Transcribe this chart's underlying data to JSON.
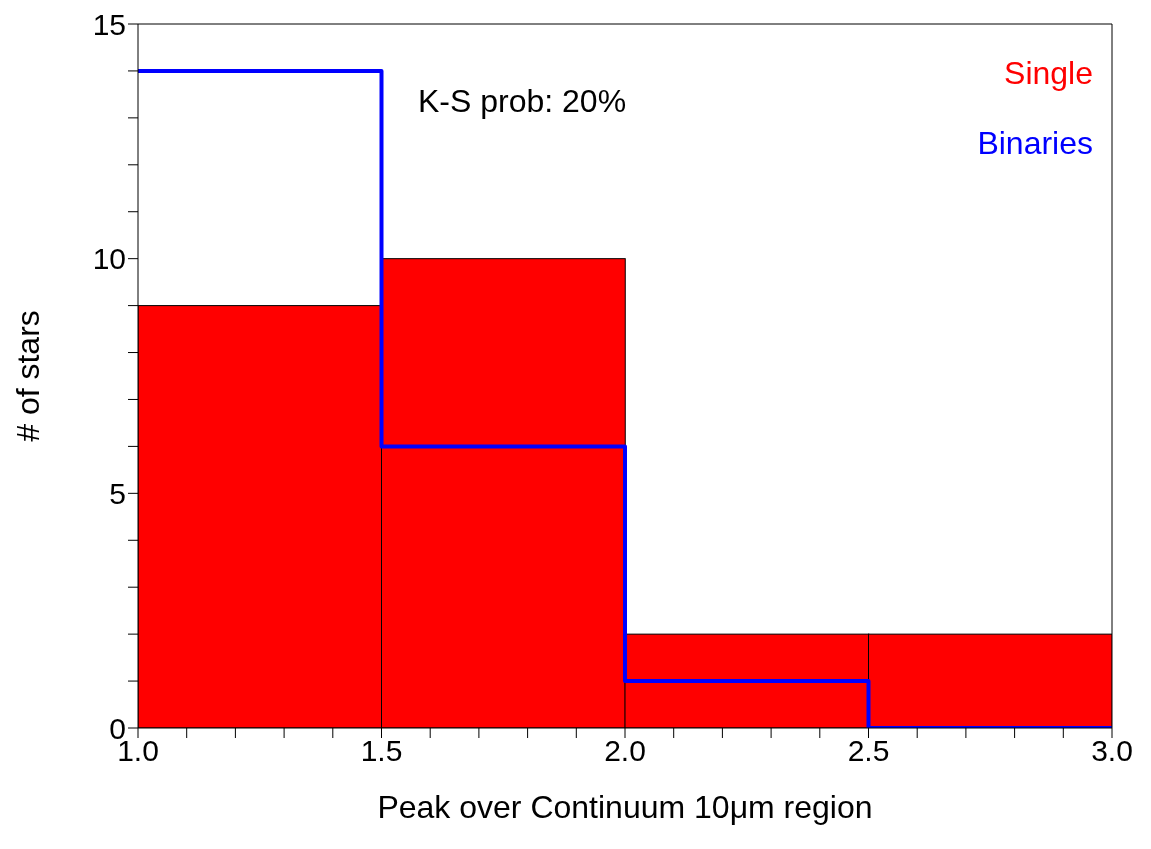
{
  "chart_data": {
    "type": "histogram",
    "xlabel": "Peak over Continuum 10μm region",
    "ylabel": "# of stars",
    "bins": [
      1,
      1.5,
      2,
      2.5,
      3
    ],
    "series": [
      {
        "name": "Single",
        "color": "#ff0000",
        "values": [
          9,
          10,
          2,
          2
        ]
      },
      {
        "name": "Binaries",
        "color": "#0000ff",
        "type": "step",
        "x": [
          1,
          1.5,
          2,
          2.5,
          3
        ],
        "values": [
          14,
          6,
          1,
          0,
          0
        ]
      }
    ],
    "xlim": [
      1,
      3
    ],
    "ylim": [
      0,
      15
    ],
    "xticks": [
      {
        "value": 1,
        "label": "1.0"
      },
      {
        "value": 1.1,
        "label": null
      },
      {
        "value": 1.2,
        "label": null
      },
      {
        "value": 1.3,
        "label": null
      },
      {
        "value": 1.4,
        "label": null
      },
      {
        "value": 1.5,
        "label": "1.5"
      },
      {
        "value": 1.6,
        "label": null
      },
      {
        "value": 1.7,
        "label": null
      },
      {
        "value": 1.8,
        "label": null
      },
      {
        "value": 1.9,
        "label": null
      },
      {
        "value": 2,
        "label": "2.0"
      },
      {
        "value": 2.1,
        "label": null
      },
      {
        "value": 2.2,
        "label": null
      },
      {
        "value": 2.3,
        "label": null
      },
      {
        "value": 2.4,
        "label": null
      },
      {
        "value": 2.5,
        "label": "2.5"
      },
      {
        "value": 2.6,
        "label": null
      },
      {
        "value": 2.7,
        "label": null
      },
      {
        "value": 2.8,
        "label": null
      },
      {
        "value": 2.9,
        "label": null
      },
      {
        "value": 3,
        "label": "3.0"
      }
    ],
    "yticks": [
      0,
      {
        "value": 1,
        "label": null
      },
      {
        "value": 2,
        "label": null
      },
      {
        "value": 3,
        "label": null
      },
      {
        "value": 4,
        "label": null
      },
      5,
      {
        "value": 6,
        "label": null
      },
      {
        "value": 7,
        "label": null
      },
      {
        "value": 8,
        "label": null
      },
      {
        "value": 9,
        "label": null
      },
      10,
      {
        "value": 11,
        "label": null
      },
      {
        "value": 12,
        "label": null
      },
      {
        "value": 13,
        "label": null
      },
      {
        "value": 14,
        "label": null
      },
      15
    ],
    "annotations": [
      "K-S prob: 20%"
    ],
    "legend": "top right",
    "grid": false
  }
}
